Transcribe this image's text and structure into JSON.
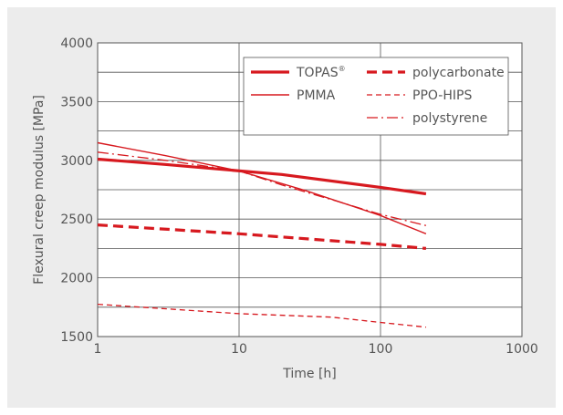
{
  "chart_data": {
    "type": "line",
    "title": "",
    "xlabel": "Time  [h]",
    "ylabel": "Flexural creep modulus [MPa]",
    "xscale": "log",
    "xlim": [
      1,
      1000
    ],
    "ylim": [
      1500,
      4000
    ],
    "x_ticks": [
      "1",
      "10",
      "100",
      "1000"
    ],
    "y_ticks": [
      "1500",
      "2000",
      "2500",
      "3000",
      "3500",
      "4000"
    ],
    "grid": true,
    "legend_position": "top-right",
    "line_color": "#d7191f",
    "series": [
      {
        "name": "TOPAS",
        "name_sup": "®",
        "style": "thick-solid",
        "points": [
          [
            1,
            3010
          ],
          [
            3,
            2965
          ],
          [
            20,
            2880
          ],
          [
            100,
            2770
          ],
          [
            210,
            2715
          ]
        ]
      },
      {
        "name": "PMMA",
        "style": "thin-solid",
        "points": [
          [
            1,
            3150
          ],
          [
            3,
            3040
          ],
          [
            10,
            2910
          ],
          [
            30,
            2740
          ],
          [
            100,
            2530
          ],
          [
            210,
            2375
          ]
        ]
      },
      {
        "name": "polycarbonate",
        "style": "thick-dashed",
        "points": [
          [
            1,
            2450
          ],
          [
            10,
            2375
          ],
          [
            100,
            2285
          ],
          [
            210,
            2250
          ]
        ]
      },
      {
        "name": "PPO-HIPS",
        "style": "thin-dashed",
        "points": [
          [
            1,
            1775
          ],
          [
            10,
            1695
          ],
          [
            45,
            1665
          ],
          [
            100,
            1620
          ],
          [
            210,
            1580
          ]
        ]
      },
      {
        "name": "polystyrene",
        "style": "dash-dot",
        "points": [
          [
            1,
            3070
          ],
          [
            3,
            3000
          ],
          [
            10,
            2910
          ],
          [
            20,
            2790
          ],
          [
            50,
            2650
          ],
          [
            100,
            2540
          ],
          [
            210,
            2445
          ]
        ]
      }
    ]
  }
}
